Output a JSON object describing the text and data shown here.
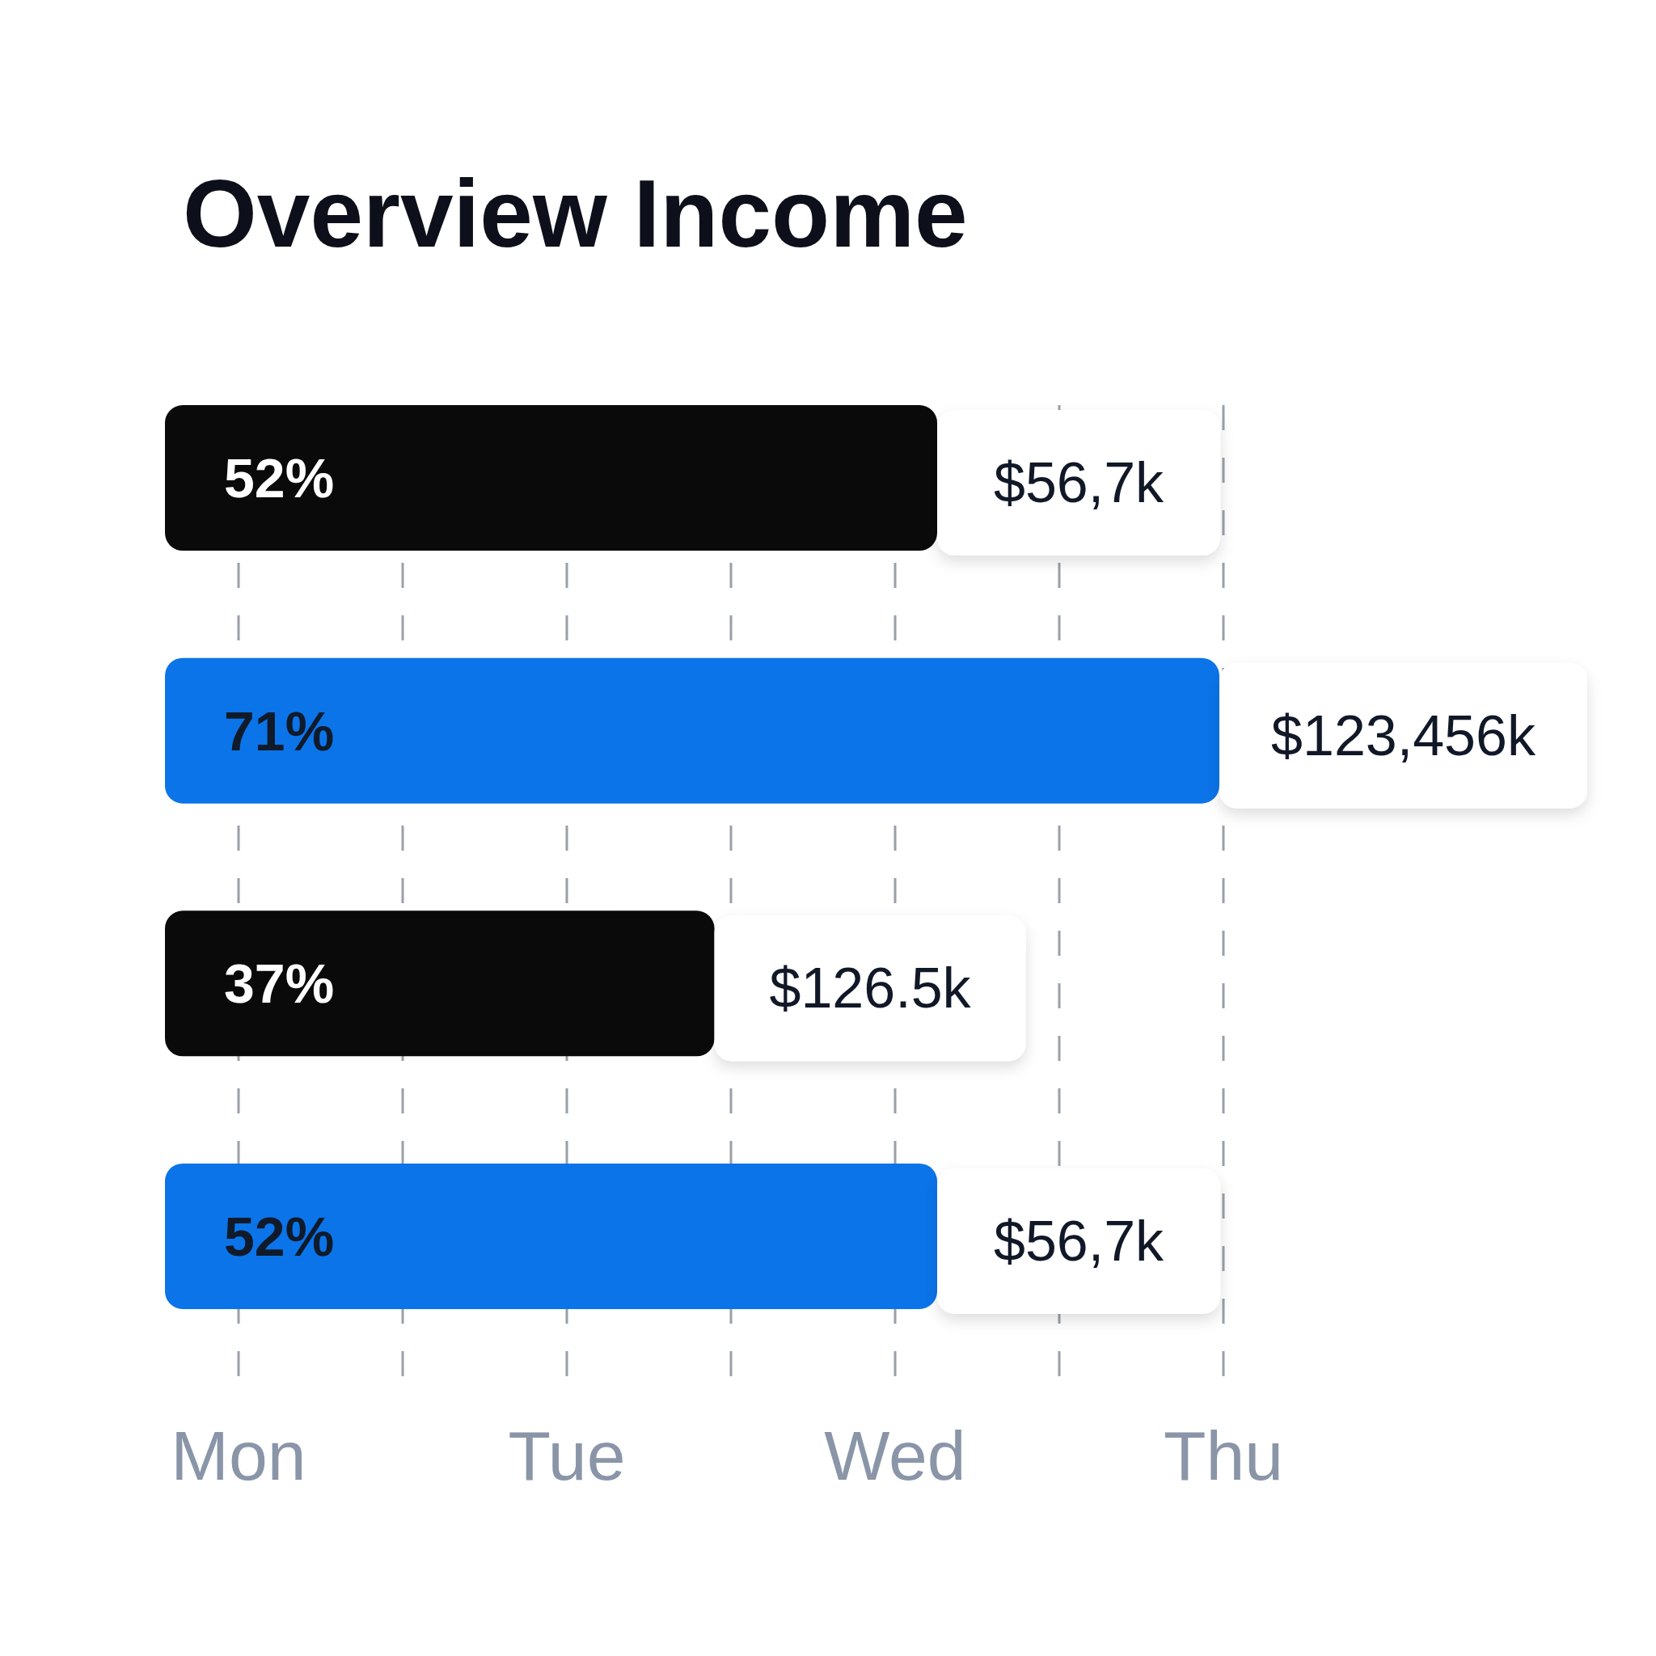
{
  "chart_data": {
    "type": "bar",
    "orientation": "horizontal",
    "title": "Overview Income",
    "categories": [
      null,
      null,
      null,
      null
    ],
    "values": [
      52,
      71,
      37,
      52
    ],
    "colors": [
      "#0a0a0a",
      "#0b74e9",
      "#0a0a0a",
      "#0b74e9"
    ],
    "value_labels": [
      "52%",
      "71%",
      "37%",
      "52%"
    ],
    "annotations": [
      {
        "text": "$56,7k",
        "x": 52
      },
      {
        "text": "$123,456k",
        "x": 71
      },
      {
        "text": "$126.5k",
        "x": 37
      },
      {
        "text": "$56,7k",
        "x": 52
      },
      "Mon",
      "Tue",
      "Wed",
      "Thu"
    ],
    "grid": true
  }
}
